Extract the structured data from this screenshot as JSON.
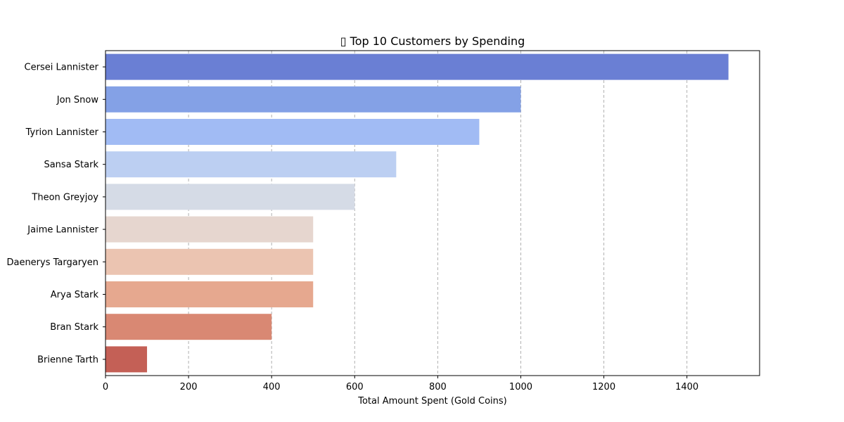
{
  "chart_data": {
    "type": "bar",
    "orientation": "horizontal",
    "title": "▯ Top 10 Customers by Spending",
    "xlabel": "Total Amount Spent (Gold Coins)",
    "ylabel": "",
    "categories": [
      "Cersei Lannister",
      "Jon Snow",
      "Tyrion Lannister",
      "Sansa Stark",
      "Theon Greyjoy",
      "Jaime Lannister",
      "Daenerys Targaryen",
      "Arya Stark",
      "Bran Stark",
      "Brienne Tarth"
    ],
    "values": [
      1500,
      1000,
      900,
      700,
      600,
      500,
      500,
      500,
      400,
      100
    ],
    "colors": [
      "#6a7fd4",
      "#84a1e6",
      "#a1bbf4",
      "#bccff2",
      "#d5dbe6",
      "#e6d6cf",
      "#ebc4b1",
      "#e6a88f",
      "#d98873",
      "#c46056"
    ],
    "xlim": [
      0,
      1575
    ],
    "xticks": [
      0,
      200,
      400,
      600,
      800,
      1000,
      1200,
      1400
    ],
    "grid": "x-dashed",
    "legend": "none"
  }
}
